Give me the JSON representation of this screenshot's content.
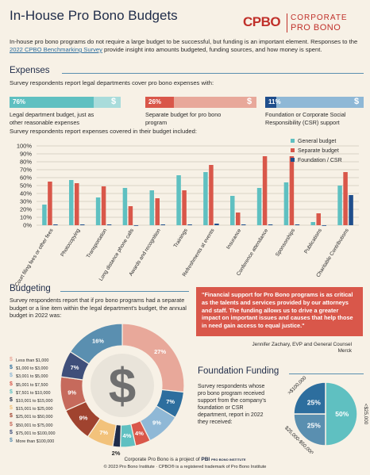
{
  "header": {
    "title": "In-House Pro Bono Budgets",
    "logo_mark": "CPBO",
    "logo_line1": "CORPORATE",
    "logo_line2": "PRO BONO"
  },
  "intro": {
    "text_before": "In-house pro bono programs do not require a large budget to be successful, but funding is an important element. Responses to the ",
    "link_text": "2022 CPBO Benchmarking Survey",
    "text_after": " provide insight into amounts budgeted, funding sources, and how money is spent."
  },
  "expenses": {
    "heading": "Expenses",
    "subheading": "Survey respondents report legal departments cover pro bono expenses with:",
    "coverage": [
      {
        "pct_label": "76%",
        "value": 76,
        "label": "Legal department budget, just as other reasonable expenses",
        "color": "#5fc0c1",
        "light": "#a9dcdb"
      },
      {
        "pct_label": "26%",
        "value": 26,
        "label": "Separate budget for pro bono program",
        "color": "#d9574a",
        "light": "#e8a89a"
      },
      {
        "pct_label": "11%",
        "value": 11,
        "label": "Foundation or Corporate Social Responsibility (CSR) support",
        "color": "#1f4e8c",
        "light": "#8fb8d6"
      }
    ],
    "chart_heading": "Survey respondents report expenses covered in their budget included:"
  },
  "chart_data": {
    "type": "bar",
    "title": "",
    "xlabel": "",
    "ylabel": "",
    "ylim": [
      0,
      100
    ],
    "yticks": [
      "0%",
      "10%",
      "20%",
      "30%",
      "40%",
      "50%",
      "60%",
      "70%",
      "80%",
      "90%",
      "100%"
    ],
    "grid": true,
    "legend_position": "top-right",
    "categories": [
      "Court filing fees or other fees",
      "Photocopying",
      "Transportation",
      "Long distance phone calls",
      "Awards and recognition",
      "Trainings",
      "Refreshments at events",
      "Insurance",
      "Conference attendance",
      "Sponsorships",
      "Publications",
      "Charitable Contributions"
    ],
    "series": [
      {
        "name": "General budget",
        "color": "#5fc0c1",
        "values": [
          26,
          57,
          35,
          47,
          44,
          63,
          67,
          37,
          47,
          54,
          4,
          50
        ]
      },
      {
        "name": "Separate budget",
        "color": "#d9574a",
        "values": [
          55,
          53,
          49,
          24,
          34,
          44,
          76,
          16,
          87,
          87,
          15,
          67
        ]
      },
      {
        "name": "Foundation / CSR",
        "color": "#1f4e8c",
        "values": [
          1,
          1,
          1,
          0,
          1,
          1,
          2,
          1,
          1,
          1,
          0,
          38
        ]
      }
    ]
  },
  "budgeting": {
    "heading": "Budgeting",
    "text": "Survey respondents report that if pro bono programs had a separate budget or a line item within the legal department's budget, the annual budget in 2022 was:",
    "donut": {
      "type": "pie",
      "center_symbol": "$",
      "slices": [
        {
          "label": "Less than $1,000",
          "value": 27,
          "display": "27%",
          "color": "#e8a89a"
        },
        {
          "label": "$1,000 to $3,000",
          "value": 7,
          "display": "7%",
          "color": "#2d6e9e"
        },
        {
          "label": "$3,001 to $5,000",
          "value": 9,
          "display": "9%",
          "color": "#8fb8d6"
        },
        {
          "label": "$5,001 to $7,500",
          "value": 4,
          "display": "4%",
          "color": "#d9574a"
        },
        {
          "label": "$7,501 to $10,000",
          "value": 4,
          "display": "4%",
          "color": "#5fc0c1"
        },
        {
          "label": "$10,001 to $15,000",
          "value": 2,
          "display": "2%",
          "color": "#1f2c49"
        },
        {
          "label": "$15,001 to $25,000",
          "value": 7,
          "display": "7%",
          "color": "#f2c27b"
        },
        {
          "label": "$25,001 to $50,000",
          "value": 9,
          "display": "9%",
          "color": "#a0432f"
        },
        {
          "label": "$50,001 to $75,000",
          "value": 9,
          "display": "9%",
          "color": "#c66a5c"
        },
        {
          "label": "$75,001 to $100,000",
          "value": 7,
          "display": "7%",
          "color": "#3f4f7a"
        },
        {
          "label": "More than $100,000",
          "value": 16,
          "display": "16%",
          "color": "#5a8fb0"
        }
      ]
    }
  },
  "quote": {
    "text": "\"Financial support for Pro Bono programs is as critical as the talents and services provided by our attorneys and staff.  The funding allows us to drive a greater impact on important issues and causes that help those in need gain access to equal justice.\"",
    "author": "Jennifer Zachary, EVP and General Counsel",
    "org": "Merck"
  },
  "foundation": {
    "heading": "Foundation Funding",
    "text": "Survey respondents whose pro bono program received support from the company's foundation or CSR department, report in 2022 they received:",
    "pie": {
      "type": "pie",
      "slices": [
        {
          "label": "<$25,000",
          "value": 50,
          "display": "50%",
          "color": "#5fc0c1"
        },
        {
          "label": "$25,000-$50,000",
          "value": 25,
          "display": "25%",
          "color": "#5a8fb0"
        },
        {
          "label": ">$100,000",
          "value": 25,
          "display": "25%",
          "color": "#2d6e9e"
        }
      ]
    }
  },
  "footer": {
    "line1": "Corporate Pro Bono is a project of",
    "pbi": "PBI",
    "pbi_name": "PRO BONO INSTITUTE",
    "line2": "© 2023 Pro Bono Institute · CPBO® is a registered trademark of Pro Bono Institute"
  }
}
